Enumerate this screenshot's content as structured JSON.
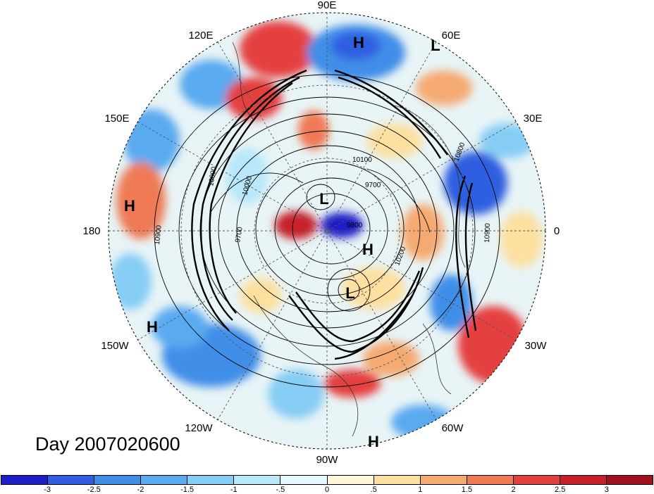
{
  "title": "Day 2007020600",
  "lon_labels": {
    "e90": "90E",
    "e60": "60E",
    "e30": "30E",
    "zero": "0",
    "w30": "30W",
    "w60": "60W",
    "w90": "90W",
    "w120": "120W",
    "w150": "150W",
    "d180": "180",
    "e150": "150E",
    "e120": "120E"
  },
  "pressure_centers": [
    {
      "label": "H"
    },
    {
      "label": "L"
    },
    {
      "label": "L"
    },
    {
      "label": "H"
    },
    {
      "label": "L"
    },
    {
      "label": "H"
    },
    {
      "label": "H"
    },
    {
      "label": "H"
    }
  ],
  "contour_labels": {
    "c1": "10100",
    "c2": "9700",
    "c3": "9800",
    "c4": "9700",
    "c5": "10900",
    "c6": "10800",
    "c7": "10900",
    "c8": "10200",
    "c9": "10000",
    "c10": "10000"
  },
  "colorbar": {
    "ticks": [
      "-3",
      "-2.5",
      "-2",
      "-1.5",
      "-1",
      "-.5",
      "0",
      ".5",
      "1",
      "1.5",
      "2",
      "2.5",
      "3"
    ],
    "colors": [
      "#1e1ec8",
      "#2f5ee0",
      "#3f8ee8",
      "#5aaaf0",
      "#86cdf5",
      "#b8e8fa",
      "#e3f7fc",
      "#fdf6d9",
      "#fde0a0",
      "#f5aa72",
      "#ef7a55",
      "#e54040",
      "#c8202a",
      "#a0101e"
    ]
  }
}
